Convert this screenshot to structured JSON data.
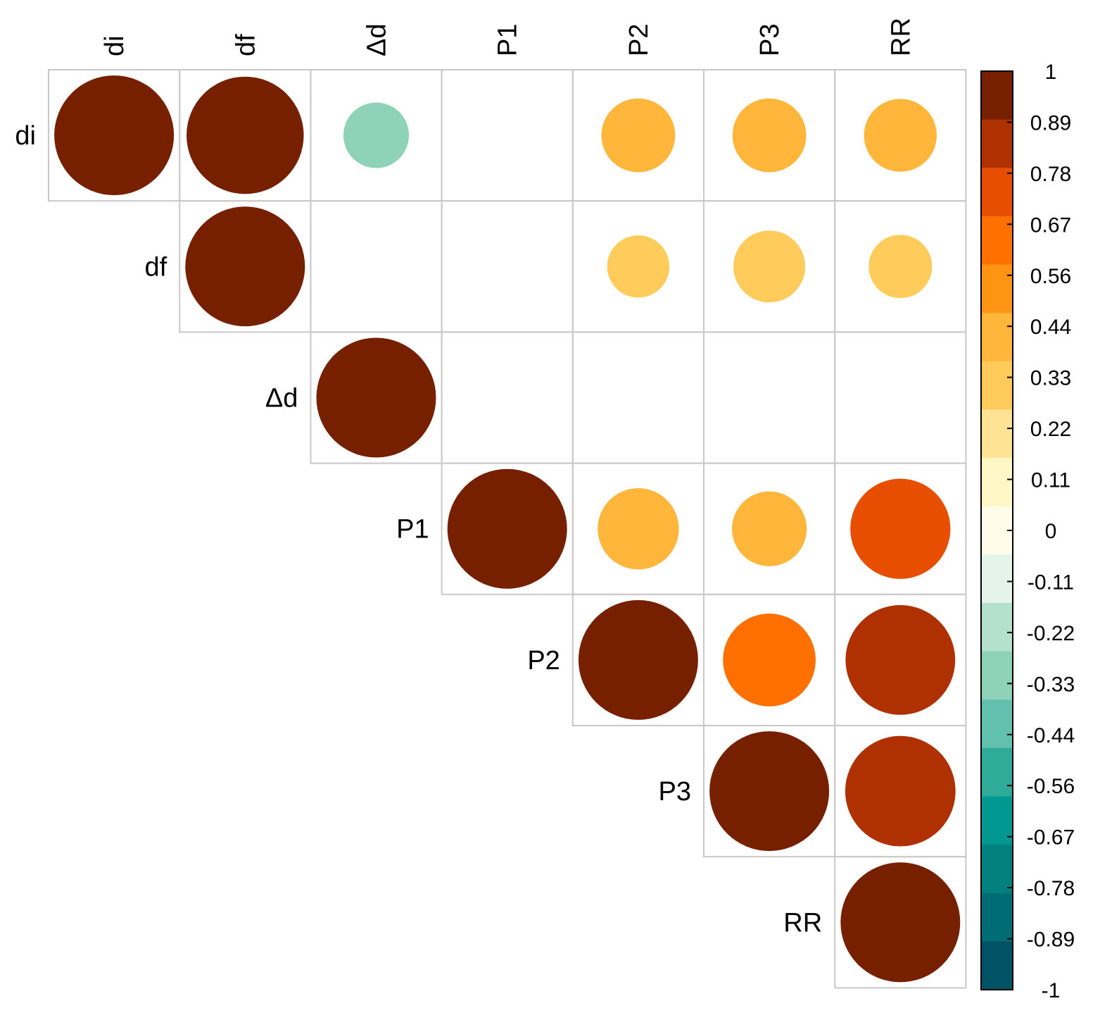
{
  "chart_data": {
    "type": "heatmap",
    "style": "correlation-circles",
    "triangle": "upper",
    "variables": [
      "di",
      "df",
      "Δd",
      "P1",
      "P2",
      "P3",
      "RR"
    ],
    "cells": [
      {
        "row": "di",
        "col": "di",
        "value": 1.0
      },
      {
        "row": "di",
        "col": "df",
        "value": 0.96
      },
      {
        "row": "di",
        "col": "Δd",
        "value": -0.3
      },
      {
        "row": "di",
        "col": "P2",
        "value": 0.38
      },
      {
        "row": "di",
        "col": "P3",
        "value": 0.38
      },
      {
        "row": "di",
        "col": "RR",
        "value": 0.37
      },
      {
        "row": "df",
        "col": "df",
        "value": 1.0
      },
      {
        "row": "df",
        "col": "P2",
        "value": 0.27
      },
      {
        "row": "df",
        "col": "P3",
        "value": 0.36
      },
      {
        "row": "df",
        "col": "RR",
        "value": 0.28
      },
      {
        "row": "Δd",
        "col": "Δd",
        "value": 1.0
      },
      {
        "row": "P1",
        "col": "P1",
        "value": 1.0
      },
      {
        "row": "P1",
        "col": "P2",
        "value": 0.46
      },
      {
        "row": "P1",
        "col": "P3",
        "value": 0.39
      },
      {
        "row": "P1",
        "col": "RR",
        "value": 0.7
      },
      {
        "row": "P2",
        "col": "P2",
        "value": 1.0
      },
      {
        "row": "P2",
        "col": "P3",
        "value": 0.6
      },
      {
        "row": "P2",
        "col": "RR",
        "value": 0.84
      },
      {
        "row": "P3",
        "col": "P3",
        "value": 1.0
      },
      {
        "row": "P3",
        "col": "RR",
        "value": 0.85
      },
      {
        "row": "RR",
        "col": "RR",
        "value": 1.0
      }
    ],
    "colorbar": {
      "range": [
        -1,
        1
      ],
      "tick_labels": [
        "1",
        "0.89",
        "0.78",
        "0.67",
        "0.56",
        "0.44",
        "0.33",
        "0.22",
        "0.11",
        "0",
        "-0.11",
        "-0.22",
        "-0.33",
        "-0.44",
        "-0.56",
        "-0.67",
        "-0.78",
        "-0.89",
        "-1"
      ],
      "colors_top_to_bottom": [
        "#772000",
        "#AF3000",
        "#E84E00",
        "#FF7000",
        "#FF9412",
        "#FFB63A",
        "#FFCB5A",
        "#FFE394",
        "#FFF6C6",
        "#FFFDE9",
        "#E4F4EA",
        "#B4E1CB",
        "#8ED2BA",
        "#61C1AE",
        "#2FAB99",
        "#009890",
        "#00817E",
        "#006C73",
        "#005364"
      ]
    },
    "grid_color": "#c8c8c8"
  }
}
